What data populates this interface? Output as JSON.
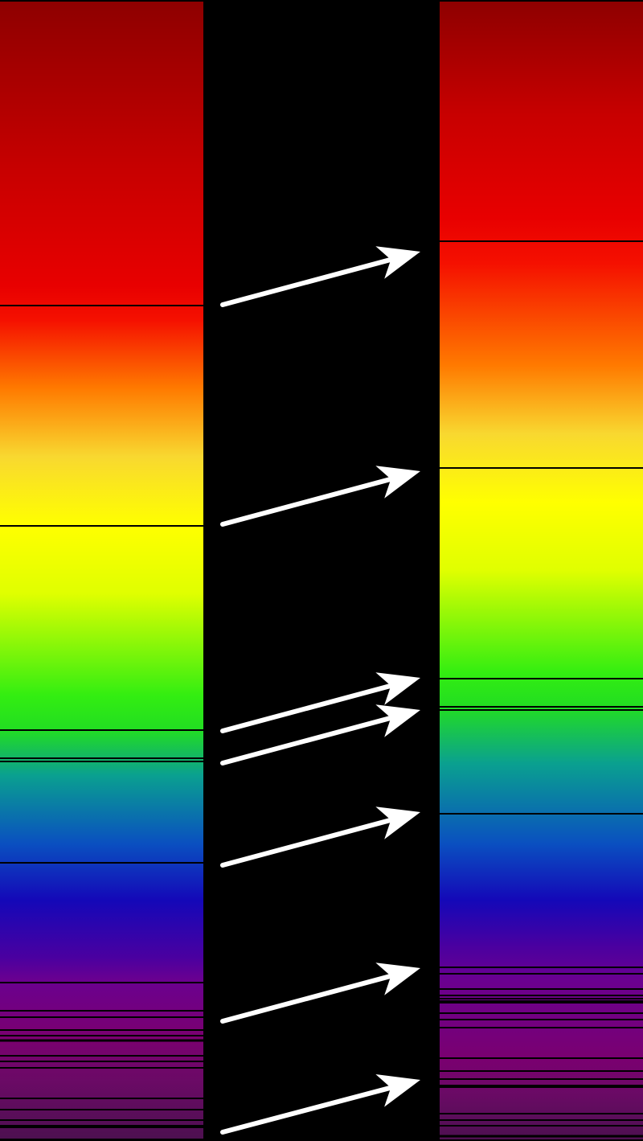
{
  "colors": {
    "background": "#000000",
    "absorption_line": "#000000",
    "arrow": "#ffffff"
  },
  "spectrum_gradient": [
    "#8e0000",
    "#c80000",
    "#e80000",
    "#f51000",
    "#ff7a00",
    "#f8d830",
    "#ffff00",
    "#e0ff00",
    "#33ee11",
    "#22dd22",
    "#0aa090",
    "#0a50c0",
    "#1408b8",
    "#4a00a0",
    "#6a0090",
    "#7a0070",
    "#6a0a65",
    "#4d1050"
  ],
  "panels": [
    {
      "name": "reference-spectrum"
    },
    {
      "name": "redshifted-spectrum"
    }
  ]
}
